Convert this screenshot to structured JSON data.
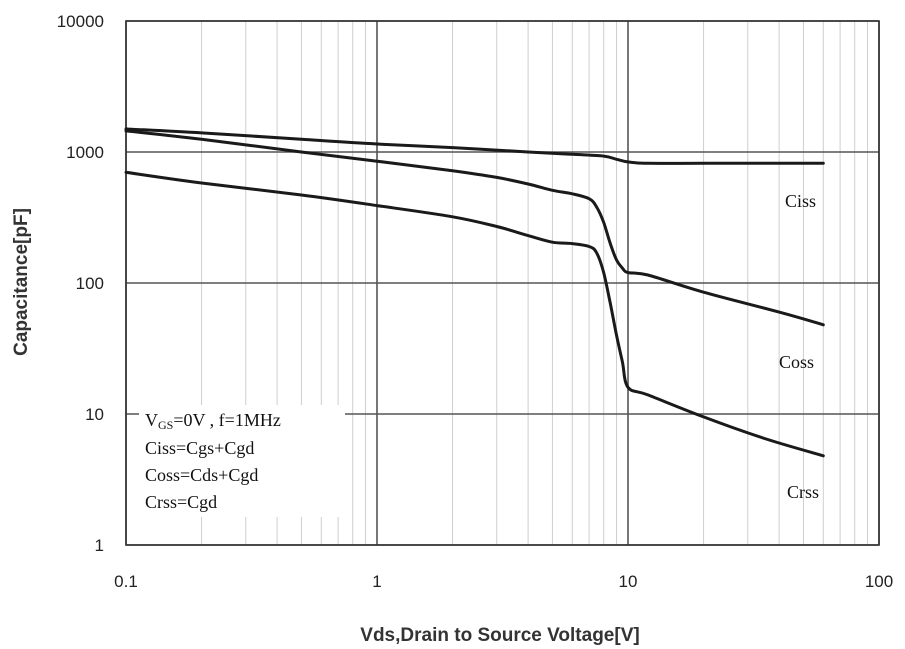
{
  "chart_data": {
    "type": "line",
    "xlabel": "Vds,Drain to Source Voltage[V]",
    "ylabel": "Capacitance[pF]",
    "xscale": "log",
    "yscale": "log",
    "xlim": [
      0.1,
      100
    ],
    "ylim": [
      1,
      10000
    ],
    "x_ticks": [
      "0.1",
      "1",
      "10",
      "100"
    ],
    "y_ticks": [
      "1",
      "10",
      "100",
      "1000",
      "10000"
    ],
    "grid": true,
    "series": [
      {
        "name": "Ciss",
        "x": [
          0.1,
          0.2,
          0.5,
          1,
          2,
          4,
          6,
          8,
          9,
          10,
          12,
          20,
          40,
          60
        ],
        "y": [
          1500,
          1400,
          1250,
          1150,
          1080,
          1000,
          960,
          930,
          880,
          840,
          820,
          820,
          820,
          820
        ]
      },
      {
        "name": "Coss",
        "x": [
          0.1,
          0.2,
          0.5,
          1,
          2,
          3,
          4,
          5,
          6,
          7,
          7.5,
          8,
          8.5,
          9,
          9.5,
          10,
          12,
          20,
          40,
          60
        ],
        "y": [
          1450,
          1250,
          1000,
          850,
          720,
          640,
          570,
          510,
          480,
          440,
          380,
          290,
          200,
          150,
          130,
          120,
          115,
          85,
          60,
          48
        ]
      },
      {
        "name": "Crss",
        "x": [
          0.1,
          0.2,
          0.5,
          1,
          2,
          3,
          4,
          5,
          6,
          7,
          7.5,
          8,
          8.5,
          9,
          9.5,
          10,
          12,
          20,
          35,
          60
        ],
        "y": [
          700,
          580,
          470,
          390,
          320,
          270,
          230,
          205,
          200,
          190,
          170,
          120,
          70,
          40,
          25,
          16,
          14,
          9.5,
          6.5,
          4.8
        ]
      }
    ],
    "annotations": {
      "condition_main": "V",
      "condition_sub": "GS",
      "condition_rest": "=0V , f=1MHz",
      "ciss_def": "Ciss=Cgs+Cgd",
      "coss_def": "Coss=Cds+Cgd",
      "crss_def": "Crss=Cgd"
    },
    "line_color": "#1a1a1a",
    "grid_major_color": "#555555",
    "grid_minor_color": "#cfcfcf"
  }
}
